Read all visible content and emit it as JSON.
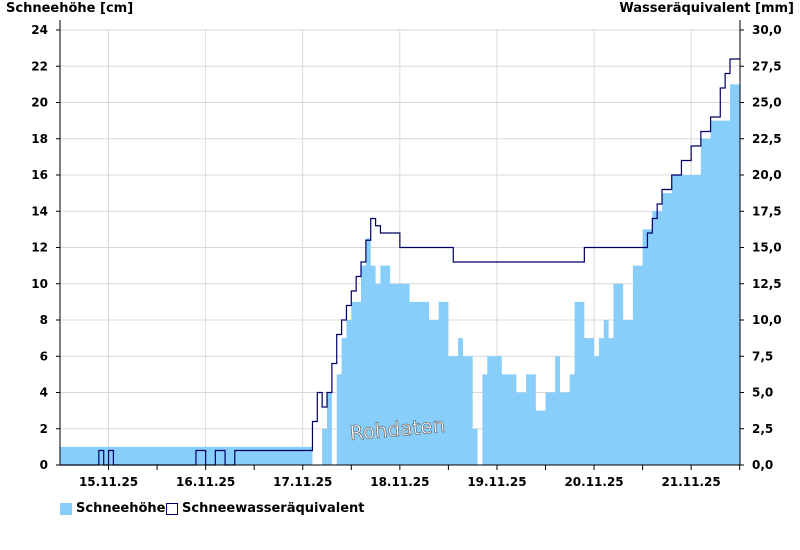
{
  "chart_data": {
    "type": "bar",
    "title": "",
    "watermark": "Rohdaten",
    "ylabel_left": "Schneehöhe [cm]",
    "ylabel_right": "Wasseräquivalent [mm]",
    "ylim_left": [
      0,
      24
    ],
    "ylim_right": [
      0,
      30
    ],
    "yticks_left": [
      "0",
      "2",
      "4",
      "6",
      "8",
      "10",
      "12",
      "14",
      "16",
      "18",
      "20",
      "22",
      "24"
    ],
    "yticks_right": [
      "0,0",
      "2,5",
      "5,0",
      "7,5",
      "10,0",
      "12,5",
      "15,0",
      "17,5",
      "20,0",
      "22,5",
      "25,0",
      "27,5",
      "30,0"
    ],
    "x_range_days": [
      "14.11.25 12:00",
      "21.11.25 23:00"
    ],
    "x_tick_labels": [
      "15.11.25",
      "16.11.25",
      "17.11.25",
      "18.11.25",
      "19.11.25",
      "20.11.25",
      "21.11.25"
    ],
    "grid": true,
    "legend_position": "bottom-left",
    "colors": {
      "snow": "#87cefa",
      "swe": "#000066",
      "grid": "#d9d9d9"
    },
    "series": [
      {
        "name": "Schneehöhe",
        "type": "area",
        "axis": "left",
        "x_days": [
          0,
          1.3,
          2.3,
          2.5,
          2.6,
          2.7,
          2.75,
          2.8,
          2.85,
          2.9,
          2.95,
          3.0,
          3.05,
          3.1,
          3.15,
          3.2,
          3.25,
          3.3,
          3.35,
          3.4,
          3.45,
          3.5,
          3.6,
          3.8,
          3.9,
          3.95,
          4.0,
          4.05,
          4.1,
          4.15,
          4.2,
          4.25,
          4.3,
          4.35,
          4.4,
          4.45,
          4.5,
          4.55,
          4.6,
          4.7,
          4.8,
          4.9,
          5.0,
          5.1,
          5.15,
          5.2,
          5.25,
          5.3,
          5.4,
          5.5,
          5.55,
          5.6,
          5.65,
          5.7,
          5.8,
          5.9,
          6.0,
          6.1,
          6.2,
          6.3,
          6.4,
          6.5,
          6.6,
          6.7,
          6.8,
          6.9,
          7.0
        ],
        "values": [
          1,
          1,
          1,
          1,
          0,
          2,
          4,
          0,
          5,
          7,
          8,
          9,
          9,
          11,
          12.5,
          11,
          10,
          11,
          11,
          10,
          10,
          10,
          9,
          8,
          9,
          9,
          6,
          6,
          7,
          6,
          6,
          2,
          0,
          5,
          6,
          6,
          6,
          5,
          5,
          4,
          5,
          3,
          4,
          6,
          4,
          4,
          5,
          9,
          7,
          6,
          7,
          8,
          7,
          10,
          8,
          11,
          13,
          14,
          15,
          16,
          16,
          16,
          18,
          19,
          19,
          21,
          21
        ]
      },
      {
        "name": "Schneewasseräquivalent",
        "type": "step",
        "axis": "right",
        "x_days": [
          0,
          0.35,
          0.4,
          0.45,
          0.5,
          0.55,
          1.35,
          1.4,
          1.5,
          1.6,
          1.7,
          1.8,
          1.9,
          2.5,
          2.6,
          2.65,
          2.7,
          2.75,
          2.8,
          2.85,
          2.9,
          2.95,
          3.0,
          3.05,
          3.1,
          3.15,
          3.2,
          3.25,
          3.3,
          3.4,
          3.5,
          3.55,
          4.0,
          4.05,
          4.5,
          5.0,
          5.35,
          5.4,
          5.9,
          6.0,
          6.05,
          6.1,
          6.15,
          6.2,
          6.3,
          6.4,
          6.5,
          6.6,
          6.7,
          6.8,
          6.85,
          6.9,
          7.0
        ],
        "values": [
          0,
          0,
          1,
          0,
          1,
          0,
          0,
          1,
          0,
          1,
          0,
          1,
          1,
          1,
          3,
          5,
          4,
          5,
          7,
          9,
          10,
          11,
          12,
          13,
          14,
          15.5,
          17,
          16.5,
          16,
          16,
          15,
          15,
          15,
          14,
          14,
          14,
          14,
          15,
          15,
          15,
          16,
          17,
          18,
          19,
          20,
          21,
          22,
          23,
          24,
          26,
          27,
          28,
          28
        ]
      }
    ]
  }
}
